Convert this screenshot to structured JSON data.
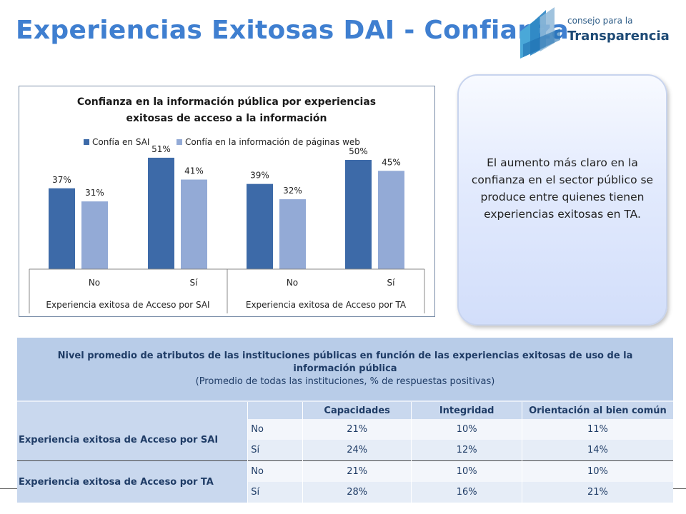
{
  "page": {
    "title": "Experiencias Exitosas DAI - Confianza",
    "logo": {
      "line1": "consejo para la",
      "line2": "Transparencia"
    }
  },
  "callout": {
    "text": "El aumento más claro en la confianza en el sector público se produce entre quienes tienen experiencias exitosas en TA."
  },
  "chart_data": {
    "type": "bar",
    "title": "Confianza en la información pública por experiencias exitosas de acceso a la información",
    "title_line1": "Confianza en la información pública por experiencias",
    "title_line2": "exitosas de acceso a la información",
    "legend_position": "top",
    "categories": [
      "No",
      "Sí",
      "No",
      "Sí"
    ],
    "groups": [
      "Experiencia exitosa de Acceso por SAI",
      "Experiencia exitosa de Acceso por TA"
    ],
    "series": [
      {
        "name": "Confía en SAI",
        "values": [
          37,
          51,
          39,
          50
        ],
        "color": "#3d6aa8",
        "labels": [
          "37%",
          "51%",
          "39%",
          "50%"
        ]
      },
      {
        "name": "Confía en la información de páginas web",
        "values": [
          31,
          41,
          32,
          45
        ],
        "color": "#93aad6",
        "labels": [
          "31%",
          "41%",
          "32%",
          "45%"
        ]
      }
    ],
    "ylim": [
      0,
      60
    ],
    "grid": false
  },
  "table": {
    "title": "Nivel promedio de atributos de las instituciones públicas en función de las experiencias exitosas de uso de la información pública",
    "subtitle": "(Promedio de todas las instituciones, % de respuestas positivas)",
    "columns": [
      "Capacidades",
      "Integridad",
      "Orientación al bien común"
    ],
    "groups": [
      {
        "label": "Experiencia exitosa de Acceso por SAI",
        "rows": [
          {
            "level": "No",
            "values": [
              "21%",
              "10%",
              "11%"
            ]
          },
          {
            "level": "Sí",
            "values": [
              "24%",
              "12%",
              "14%"
            ]
          }
        ]
      },
      {
        "label": "Experiencia exitosa de Acceso por TA",
        "rows": [
          {
            "level": "No",
            "values": [
              "21%",
              "10%",
              "10%"
            ]
          },
          {
            "level": "Sí",
            "values": [
              "28%",
              "16%",
              "21%"
            ]
          }
        ]
      }
    ]
  },
  "colors": {
    "title": "#3f7fd0",
    "series1": "#3d6aa8",
    "series2": "#93aad6",
    "table_header": "#b8cce8"
  }
}
